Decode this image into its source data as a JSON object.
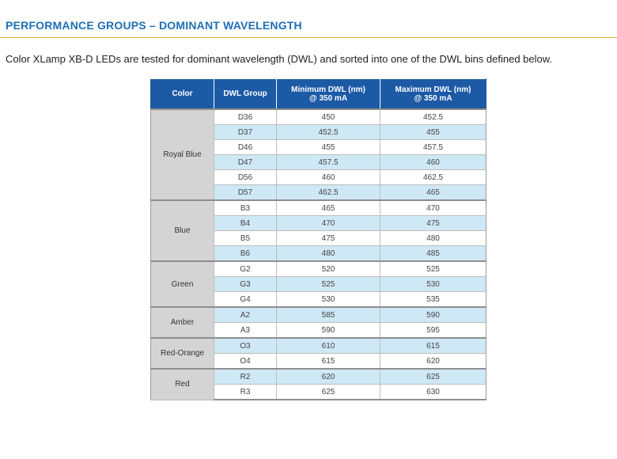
{
  "page": {
    "heading": "PERFORMANCE GROUPS – DOMINANT WAVELENGTH",
    "intro": "Color XLamp XB-D LEDs are tested for dominant wavelength (DWL) and sorted into one of the DWL bins defined below."
  },
  "table": {
    "headers": {
      "color": "Color",
      "group": "DWL Group",
      "min_line1": "Minimum DWL (nm)",
      "min_line2": "@ 350 mA",
      "max_line1": "Maximum DWL (nm)",
      "max_line2": "@ 350 mA"
    },
    "groups": [
      {
        "color": "Royal Blue",
        "rows": [
          [
            "D36",
            "450",
            "452.5"
          ],
          [
            "D37",
            "452.5",
            "455"
          ],
          [
            "D46",
            "455",
            "457.5"
          ],
          [
            "D47",
            "457.5",
            "460"
          ],
          [
            "D56",
            "460",
            "462.5"
          ],
          [
            "D57",
            "462.5",
            "465"
          ]
        ]
      },
      {
        "color": "Blue",
        "rows": [
          [
            "B3",
            "465",
            "470"
          ],
          [
            "B4",
            "470",
            "475"
          ],
          [
            "B5",
            "475",
            "480"
          ],
          [
            "B6",
            "480",
            "485"
          ]
        ]
      },
      {
        "color": "Green",
        "rows": [
          [
            "G2",
            "520",
            "525"
          ],
          [
            "G3",
            "525",
            "530"
          ],
          [
            "G4",
            "530",
            "535"
          ]
        ]
      },
      {
        "color": "Amber",
        "rows": [
          [
            "A2",
            "585",
            "590"
          ],
          [
            "A3",
            "590",
            "595"
          ]
        ]
      },
      {
        "color": "Red-Orange",
        "rows": [
          [
            "O3",
            "610",
            "615"
          ],
          [
            "O4",
            "615",
            "620"
          ]
        ]
      },
      {
        "color": "Red",
        "rows": [
          [
            "R2",
            "620",
            "625"
          ],
          [
            "R3",
            "625",
            "630"
          ]
        ]
      }
    ]
  }
}
